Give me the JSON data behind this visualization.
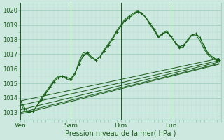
{
  "title": "",
  "xlabel": "Pression niveau de la mer( hPa )",
  "bg_color": "#cce8df",
  "grid_color_major": "#99ccbb",
  "grid_color_minor": "#b8ddd2",
  "line_color_dark": "#1a5c1a",
  "line_color_mid": "#2e7d2e",
  "ylim": [
    1012.5,
    1020.5
  ],
  "xlim": [
    0,
    96
  ],
  "yticks": [
    1013,
    1014,
    1015,
    1016,
    1017,
    1018,
    1019,
    1020
  ],
  "xtick_labels": [
    "Ven",
    "Sam",
    "Dim",
    "Lun"
  ],
  "xtick_positions": [
    0,
    24,
    48,
    72
  ],
  "straight_lines": [
    {
      "x0": 0,
      "y0": 1013.8,
      "x1": 95,
      "y1": 1016.7
    },
    {
      "x0": 0,
      "y0": 1013.5,
      "x1": 95,
      "y1": 1016.55
    },
    {
      "x0": 0,
      "y0": 1013.2,
      "x1": 95,
      "y1": 1016.45
    },
    {
      "x0": 0,
      "y0": 1013.0,
      "x1": 95,
      "y1": 1016.35
    },
    {
      "x0": 0,
      "y0": 1012.9,
      "x1": 95,
      "y1": 1016.3
    }
  ],
  "main_x": [
    0,
    2,
    4,
    6,
    8,
    10,
    12,
    14,
    16,
    18,
    20,
    22,
    24,
    26,
    28,
    30,
    32,
    34,
    36,
    38,
    40,
    42,
    44,
    46,
    48,
    50,
    52,
    54,
    56,
    58,
    60,
    62,
    64,
    66,
    68,
    70,
    72,
    74,
    76,
    78,
    80,
    82,
    84,
    86,
    88,
    90,
    92,
    94,
    95
  ],
  "main_y": [
    1013.8,
    1013.3,
    1013.0,
    1013.1,
    1013.5,
    1013.9,
    1014.3,
    1014.7,
    1015.1,
    1015.4,
    1015.5,
    1015.4,
    1015.3,
    1015.7,
    1016.3,
    1016.9,
    1017.1,
    1016.8,
    1016.6,
    1016.8,
    1017.2,
    1017.6,
    1018.0,
    1018.5,
    1018.9,
    1019.3,
    1019.5,
    1019.7,
    1019.9,
    1019.8,
    1019.5,
    1019.1,
    1018.7,
    1018.2,
    1018.4,
    1018.5,
    1018.2,
    1017.8,
    1017.5,
    1017.6,
    1017.9,
    1018.3,
    1018.4,
    1018.1,
    1017.5,
    1017.0,
    1016.8,
    1016.6,
    1016.6
  ],
  "wiggly2_x": [
    0,
    2,
    4,
    6,
    8,
    10,
    12,
    14,
    16,
    18,
    20,
    22,
    24,
    26,
    28,
    30,
    32,
    34,
    36,
    38,
    40,
    42,
    44,
    46,
    48,
    50,
    52,
    54,
    56,
    58,
    60,
    62,
    64,
    66,
    68,
    70,
    72,
    74,
    76,
    78,
    80,
    82,
    84,
    86,
    88,
    90,
    92,
    94,
    95
  ],
  "wiggly2_y": [
    1013.6,
    1013.1,
    1013.0,
    1013.1,
    1013.5,
    1014.0,
    1014.4,
    1014.8,
    1015.2,
    1015.5,
    1015.5,
    1015.3,
    1015.2,
    1015.6,
    1016.5,
    1017.1,
    1017.0,
    1016.7,
    1016.6,
    1016.8,
    1017.3,
    1017.7,
    1018.1,
    1018.6,
    1019.0,
    1019.4,
    1019.6,
    1019.8,
    1019.95,
    1019.8,
    1019.5,
    1019.0,
    1018.6,
    1018.1,
    1018.4,
    1018.6,
    1018.2,
    1017.8,
    1017.4,
    1017.5,
    1018.0,
    1018.3,
    1018.3,
    1017.9,
    1017.3,
    1016.9,
    1016.7,
    1016.55,
    1016.55
  ]
}
